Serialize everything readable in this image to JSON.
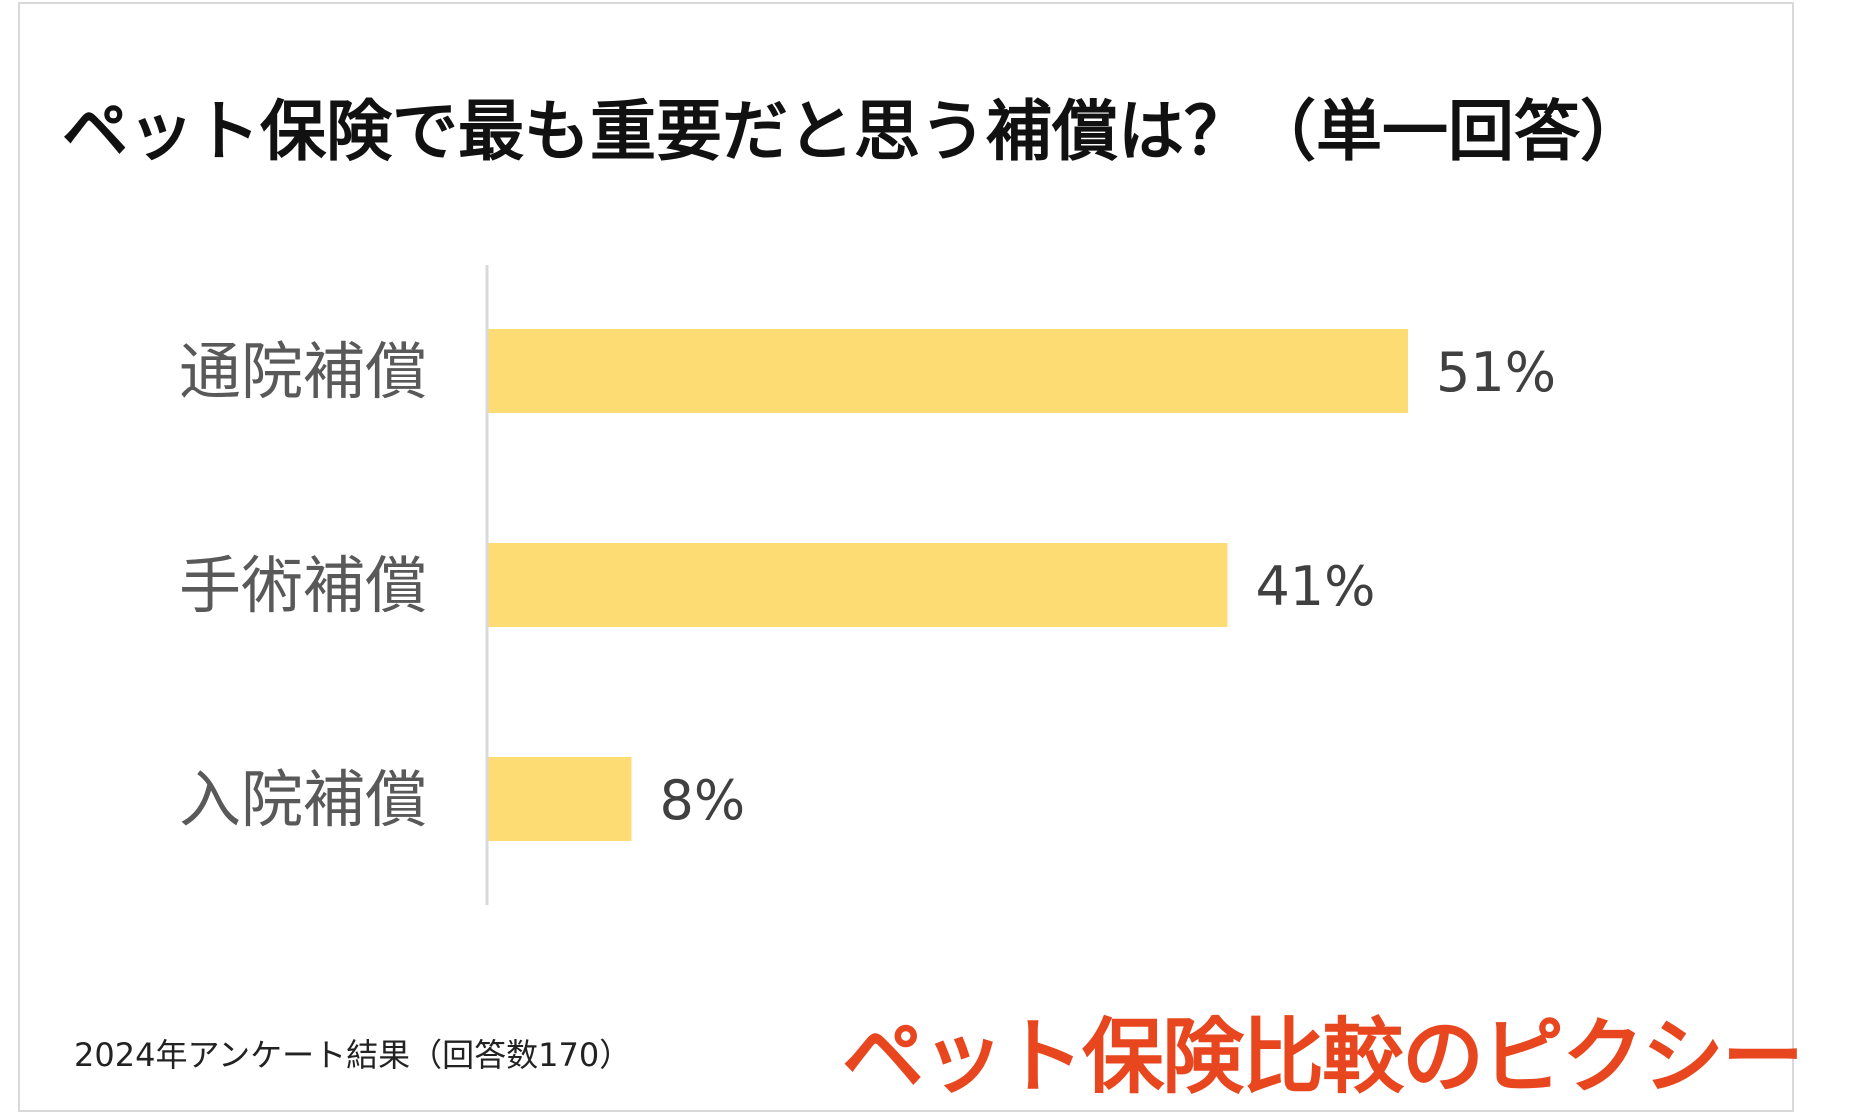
{
  "title": "ペット保険で最も重要だと思う補償は？（単一回答）",
  "footer_note": "2024年アンケート結果（回答数170）",
  "brand": "ペット保険比較のピクシー",
  "colors": {
    "bar": "#FDDC74",
    "axis": "#d9d9d9",
    "label": "#595959",
    "value": "#404040",
    "brand": "#e8461e"
  },
  "chart_data": {
    "type": "bar",
    "orientation": "horizontal",
    "categories": [
      "通院補償",
      "手術補償",
      "入院補償"
    ],
    "values": [
      51,
      41,
      8
    ],
    "data_labels": [
      "51%",
      "41%",
      "8%"
    ],
    "title": "ペット保険で最も重要だと思う補償は？（単一回答）",
    "xlabel": "",
    "ylabel": "",
    "xlim": [
      0,
      100
    ],
    "grid": false,
    "legend": "none"
  }
}
